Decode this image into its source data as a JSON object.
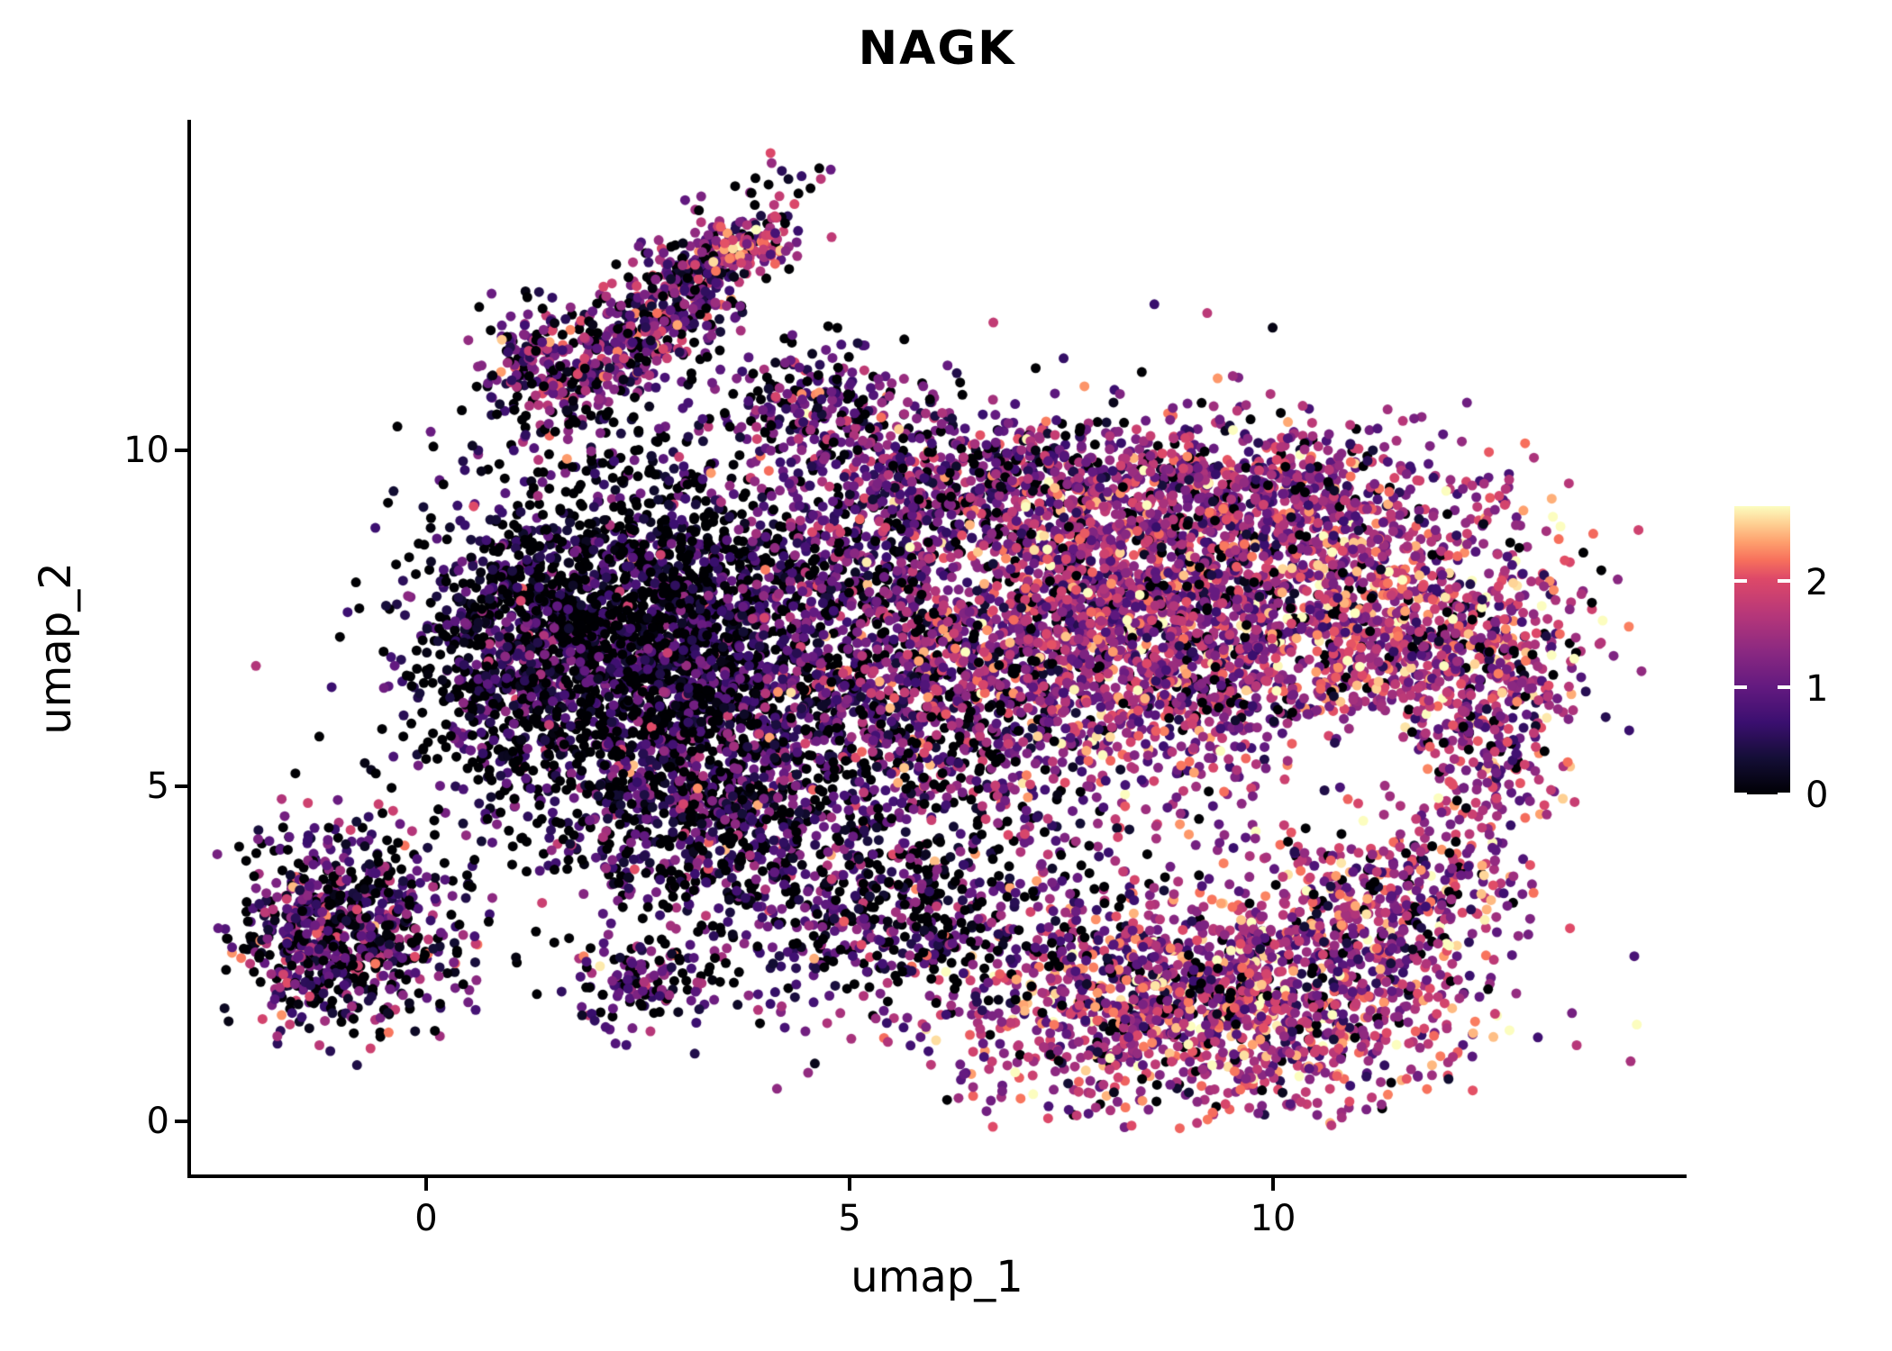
{
  "chart_data": {
    "type": "scatter",
    "title": "NAGK",
    "xlabel": "umap_1",
    "ylabel": "umap_2",
    "xlim": [
      -2.8,
      14.9
    ],
    "ylim": [
      -0.8,
      14.9
    ],
    "xtick_labels": [
      "0",
      "5",
      "10"
    ],
    "xtick_values": [
      0,
      5,
      10
    ],
    "ytick_labels": [
      "0",
      "5",
      "10"
    ],
    "ytick_values": [
      0,
      5,
      10
    ],
    "grid": false,
    "legend_position": "right",
    "point_radius_px": 5.5,
    "seed": 42,
    "colormap": "magma",
    "colormap_stops": [
      {
        "t": 0.0,
        "color": "#000004"
      },
      {
        "t": 0.125,
        "color": "#140e36"
      },
      {
        "t": 0.25,
        "color": "#3b0f70"
      },
      {
        "t": 0.375,
        "color": "#641a80"
      },
      {
        "t": 0.5,
        "color": "#8c2981"
      },
      {
        "t": 0.625,
        "color": "#b73779"
      },
      {
        "t": 0.75,
        "color": "#de4968"
      },
      {
        "t": 0.8125,
        "color": "#f7705c"
      },
      {
        "t": 0.875,
        "color": "#fe9f6d"
      },
      {
        "t": 0.9375,
        "color": "#fecf92"
      },
      {
        "t": 1.0,
        "color": "#fcfdbf"
      }
    ],
    "colorbar": {
      "vmin": 0,
      "vmax": 2.7,
      "tick_values": [
        2,
        1,
        0
      ],
      "tick_labels": [
        "2",
        "1",
        "0"
      ]
    },
    "clusters": [
      {
        "name": "bottom-left-blob",
        "n": 750,
        "cx": -1.0,
        "cy": 2.8,
        "sx": 0.72,
        "sy": 0.72,
        "rot": 0,
        "expr_mean": 0.85,
        "expr_sd": 0.65,
        "zero_frac": 0.22
      },
      {
        "name": "top-arm",
        "n": 620,
        "cx": 2.75,
        "cy": 12.0,
        "sx": 1.05,
        "sy": 0.34,
        "rot": 50,
        "expr_mean": 1.05,
        "expr_sd": 0.65,
        "zero_frac": 0.15
      },
      {
        "name": "top-arm-tip",
        "n": 70,
        "cx": 3.85,
        "cy": 13.05,
        "sx": 0.28,
        "sy": 0.22,
        "rot": 0,
        "expr_mean": 1.8,
        "expr_sd": 0.5,
        "zero_frac": 0.05
      },
      {
        "name": "top-arm-side-blob",
        "n": 150,
        "cx": 1.35,
        "cy": 11.35,
        "sx": 0.33,
        "sy": 0.42,
        "rot": 0,
        "expr_mean": 0.95,
        "expr_sd": 0.6,
        "zero_frac": 0.18
      },
      {
        "name": "left-dark-mass",
        "n": 2700,
        "cx": 2.6,
        "cy": 7.2,
        "sx": 1.25,
        "sy": 1.35,
        "rot": 0,
        "expr_mean": 0.5,
        "expr_sd": 0.55,
        "zero_frac": 0.38
      },
      {
        "name": "left-mass-west-edge",
        "n": 350,
        "cx": 0.9,
        "cy": 6.9,
        "sx": 0.45,
        "sy": 0.95,
        "rot": 0,
        "expr_mean": 0.6,
        "expr_sd": 0.55,
        "zero_frac": 0.3
      },
      {
        "name": "mid-transition",
        "n": 1500,
        "cx": 5.8,
        "cy": 7.0,
        "sx": 1.15,
        "sy": 1.55,
        "rot": 0,
        "expr_mean": 0.95,
        "expr_sd": 0.6,
        "zero_frac": 0.2
      },
      {
        "name": "top-middle-band",
        "n": 480,
        "cx": 6.6,
        "cy": 9.6,
        "sx": 1.1,
        "sy": 0.5,
        "rot": 0,
        "expr_mean": 1.1,
        "expr_sd": 0.6,
        "zero_frac": 0.15
      },
      {
        "name": "right-mass",
        "n": 2600,
        "cx": 8.6,
        "cy": 7.5,
        "sx": 1.5,
        "sy": 1.3,
        "rot": 0,
        "expr_mean": 1.45,
        "expr_sd": 0.6,
        "zero_frac": 0.09
      },
      {
        "name": "right-edge",
        "n": 850,
        "cx": 11.7,
        "cy": 7.4,
        "sx": 0.95,
        "sy": 1.2,
        "rot": 0,
        "expr_mean": 1.65,
        "expr_sd": 0.6,
        "zero_frac": 0.07
      },
      {
        "name": "far-right-arc",
        "n": 260,
        "cx": 12.6,
        "cy": 6.0,
        "sx": 0.45,
        "sy": 1.0,
        "rot": 0,
        "expr_mean": 1.5,
        "expr_sd": 0.65,
        "zero_frac": 0.1
      },
      {
        "name": "top-right-band",
        "n": 420,
        "cx": 9.9,
        "cy": 9.4,
        "sx": 0.95,
        "sy": 0.5,
        "rot": 0,
        "expr_mean": 1.35,
        "expr_sd": 0.6,
        "zero_frac": 0.12
      },
      {
        "name": "bottom-right-lobe",
        "n": 1550,
        "cx": 9.2,
        "cy": 1.8,
        "sx": 1.45,
        "sy": 0.85,
        "rot": 0,
        "expr_mean": 1.55,
        "expr_sd": 0.65,
        "zero_frac": 0.08
      },
      {
        "name": "right-ring-arc",
        "n": 420,
        "cx": 11.4,
        "cy": 3.4,
        "sx": 0.8,
        "sy": 0.8,
        "rot": 0,
        "expr_mean": 1.5,
        "expr_sd": 0.6,
        "zero_frac": 0.1
      },
      {
        "name": "bottom-bridge",
        "n": 620,
        "cx": 5.6,
        "cy": 3.1,
        "sx": 1.3,
        "sy": 0.75,
        "rot": 0,
        "expr_mean": 0.8,
        "expr_sd": 0.6,
        "zero_frac": 0.28
      },
      {
        "name": "left-tail",
        "n": 700,
        "cx": 3.4,
        "cy": 4.7,
        "sx": 1.0,
        "sy": 0.85,
        "rot": 0,
        "expr_mean": 0.7,
        "expr_sd": 0.6,
        "zero_frac": 0.3
      },
      {
        "name": "small-bottom-scatter",
        "n": 130,
        "cx": 2.6,
        "cy": 2.0,
        "sx": 0.5,
        "sy": 0.33,
        "rot": 0,
        "expr_mean": 0.9,
        "expr_sd": 0.6,
        "zero_frac": 0.22
      },
      {
        "name": "arm-junction",
        "n": 220,
        "cx": 4.6,
        "cy": 10.6,
        "sx": 0.6,
        "sy": 0.45,
        "rot": 0,
        "expr_mean": 1.0,
        "expr_sd": 0.6,
        "zero_frac": 0.18
      }
    ],
    "holes": [
      {
        "cx": 10.9,
        "cy": 5.1,
        "rx": 1.0,
        "ry": 1.0,
        "keep_prob": 0.15
      },
      {
        "cx": 6.6,
        "cy": 8.1,
        "rx": 0.5,
        "ry": 0.45,
        "keep_prob": 0.35
      }
    ]
  }
}
